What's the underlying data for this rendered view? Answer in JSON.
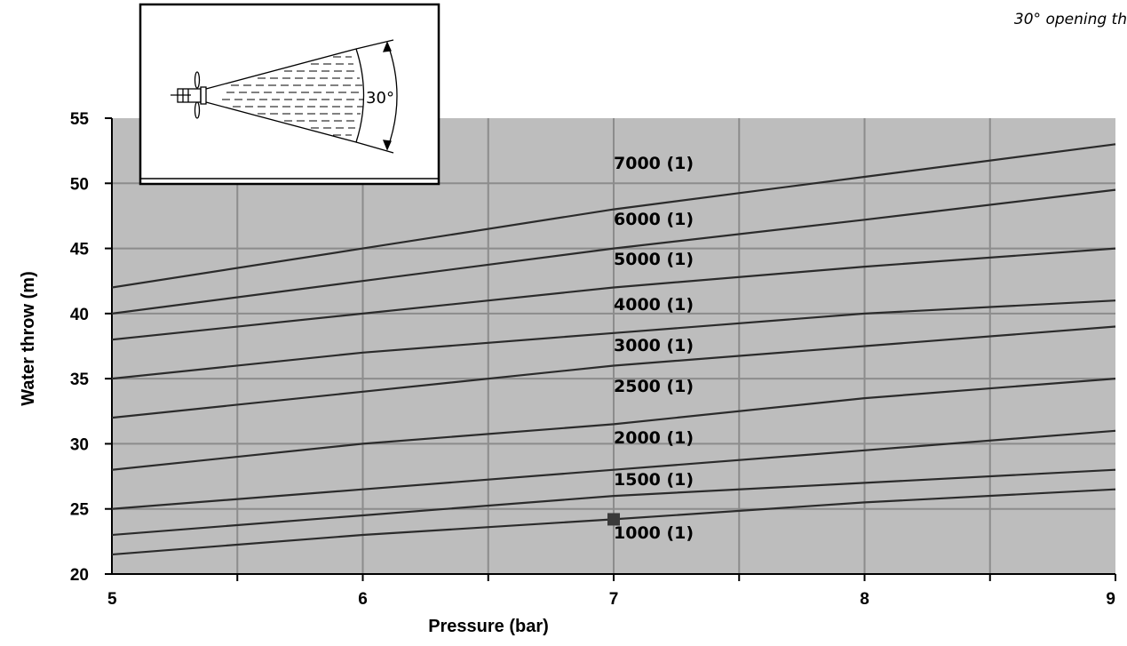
{
  "corner_note": "30° opening th",
  "inset": {
    "angle_label": "30°"
  },
  "chart_data": {
    "type": "line",
    "title": "",
    "xlabel": "Pressure (bar)",
    "ylabel": "Water throw (m)",
    "xlim": [
      5,
      9
    ],
    "ylim": [
      20,
      55
    ],
    "x_ticks": [
      "5",
      "6",
      "7",
      "8",
      "9"
    ],
    "y_ticks": [
      "20",
      "25",
      "30",
      "35",
      "40",
      "45",
      "50",
      "55"
    ],
    "grid": true,
    "background": "#bdbdbd",
    "line_color": "#2b2b2b",
    "series": [
      {
        "name": "7000 (1)",
        "points": [
          [
            5,
            42
          ],
          [
            6,
            45
          ],
          [
            7,
            48
          ],
          [
            8,
            50.5
          ],
          [
            9,
            53
          ]
        ]
      },
      {
        "name": "6000 (1)",
        "points": [
          [
            5,
            40
          ],
          [
            6,
            42.5
          ],
          [
            7,
            45
          ],
          [
            8,
            47.2
          ],
          [
            9,
            49.5
          ]
        ]
      },
      {
        "name": "5000 (1)",
        "points": [
          [
            5,
            38
          ],
          [
            6,
            40
          ],
          [
            7,
            42
          ],
          [
            8,
            43.6
          ],
          [
            9,
            45
          ]
        ]
      },
      {
        "name": "4000 (1)",
        "points": [
          [
            5,
            35
          ],
          [
            6,
            37
          ],
          [
            7,
            38.5
          ],
          [
            8,
            40
          ],
          [
            9,
            41
          ]
        ]
      },
      {
        "name": "3000 (1)",
        "points": [
          [
            5,
            32
          ],
          [
            6,
            34
          ],
          [
            7,
            36
          ],
          [
            8,
            37.5
          ],
          [
            9,
            39
          ]
        ]
      },
      {
        "name": "2500 (1)",
        "points": [
          [
            5,
            28
          ],
          [
            6,
            30
          ],
          [
            7,
            31.5
          ],
          [
            8,
            33.5
          ],
          [
            9,
            35
          ]
        ]
      },
      {
        "name": "2000 (1)",
        "points": [
          [
            5,
            25
          ],
          [
            6,
            26.5
          ],
          [
            7,
            28
          ],
          [
            8,
            29.5
          ],
          [
            9,
            31
          ]
        ]
      },
      {
        "name": "1500 (1)",
        "points": [
          [
            5,
            23
          ],
          [
            6,
            24.5
          ],
          [
            7,
            26
          ],
          [
            8,
            27
          ],
          [
            9,
            28
          ]
        ]
      },
      {
        "name": "1000 (1)",
        "points": [
          [
            5,
            21.5
          ],
          [
            6,
            23
          ],
          [
            7,
            24.2
          ],
          [
            8,
            25.5
          ],
          [
            9,
            26.5
          ]
        ]
      }
    ],
    "marker": {
      "x": 7,
      "y": 24.2,
      "shape": "square",
      "color": "#3a3a3a"
    }
  }
}
